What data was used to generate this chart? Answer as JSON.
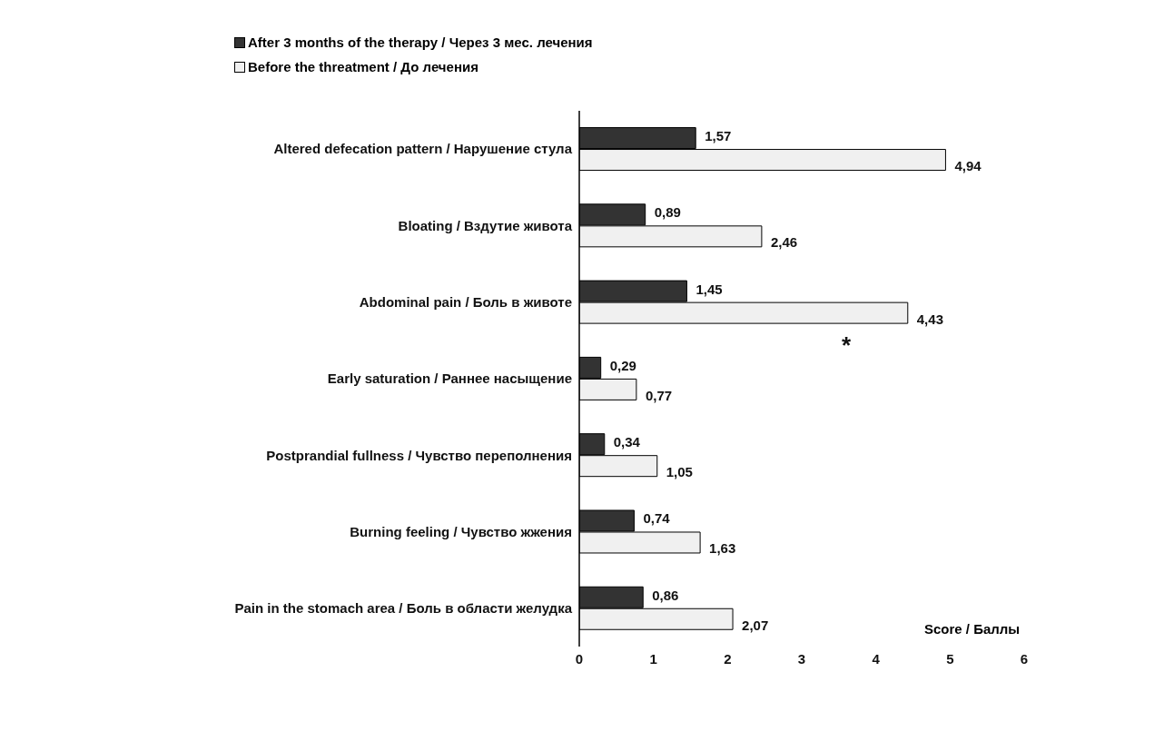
{
  "chart_data": {
    "type": "bar",
    "orientation": "horizontal",
    "xlabel": "Score / Баллы",
    "categories": [
      "Altered defecation pattern / Нарушение стула",
      "Bloating / Вздутие живота",
      "Abdominal pain / Боль в животе",
      "Early saturation / Раннее насыщение",
      "Postprandial fullness / Чувство переполнения",
      "Burning feeling / Чувство жжения",
      "Pain in the stomach area / Боль в области желудка"
    ],
    "series": [
      {
        "name": "After 3 months of the therapy / Через 3 мес. лечения",
        "color": "#333333",
        "values": [
          1.57,
          0.89,
          1.45,
          0.29,
          0.34,
          0.74,
          0.86
        ],
        "value_labels": [
          "1,57",
          "0,89",
          "1,45",
          "0,29",
          "0,34",
          "0,74",
          "0,86"
        ]
      },
      {
        "name": "Before the threatment / До лечения",
        "color": "#f0f0f0",
        "values": [
          4.94,
          2.46,
          4.43,
          0.77,
          1.05,
          1.63,
          2.07
        ],
        "value_labels": [
          "4,94",
          "2,46",
          "4,43",
          "0,77",
          "1,05",
          "1,63",
          "2,07"
        ]
      }
    ],
    "annotations": [
      {
        "text": "*",
        "x": 3.6,
        "y": "Abdominal pain / Боль в животе"
      }
    ],
    "xlim": [
      0,
      6
    ],
    "xticks": [
      0,
      1,
      2,
      3,
      4,
      5,
      6
    ],
    "grid": false,
    "legend": "top"
  }
}
